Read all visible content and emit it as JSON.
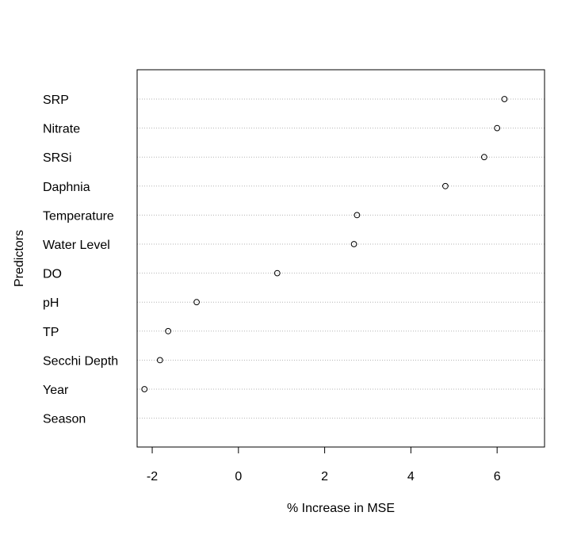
{
  "chart_data": {
    "type": "scatter",
    "title": "",
    "xlabel": "% Increase in MSE",
    "ylabel": "Predictors",
    "xlim": [
      -2.35,
      7.1
    ],
    "xticks": [
      -2,
      0,
      2,
      4,
      6
    ],
    "xtick_labels": [
      "-2",
      "0",
      "2",
      "4",
      "6"
    ],
    "grid": "horizontal dotted",
    "categories": [
      "SRP",
      "Nitrate",
      "SRSi",
      "Daphnia",
      "Temperature",
      "Water Level",
      "DO",
      "pH",
      "TP",
      "Secchi Depth",
      "Year",
      "Season"
    ],
    "values": [
      6.17,
      6.0,
      5.7,
      4.8,
      2.75,
      2.68,
      0.9,
      -0.97,
      -1.63,
      -1.82,
      -2.18,
      null
    ]
  }
}
